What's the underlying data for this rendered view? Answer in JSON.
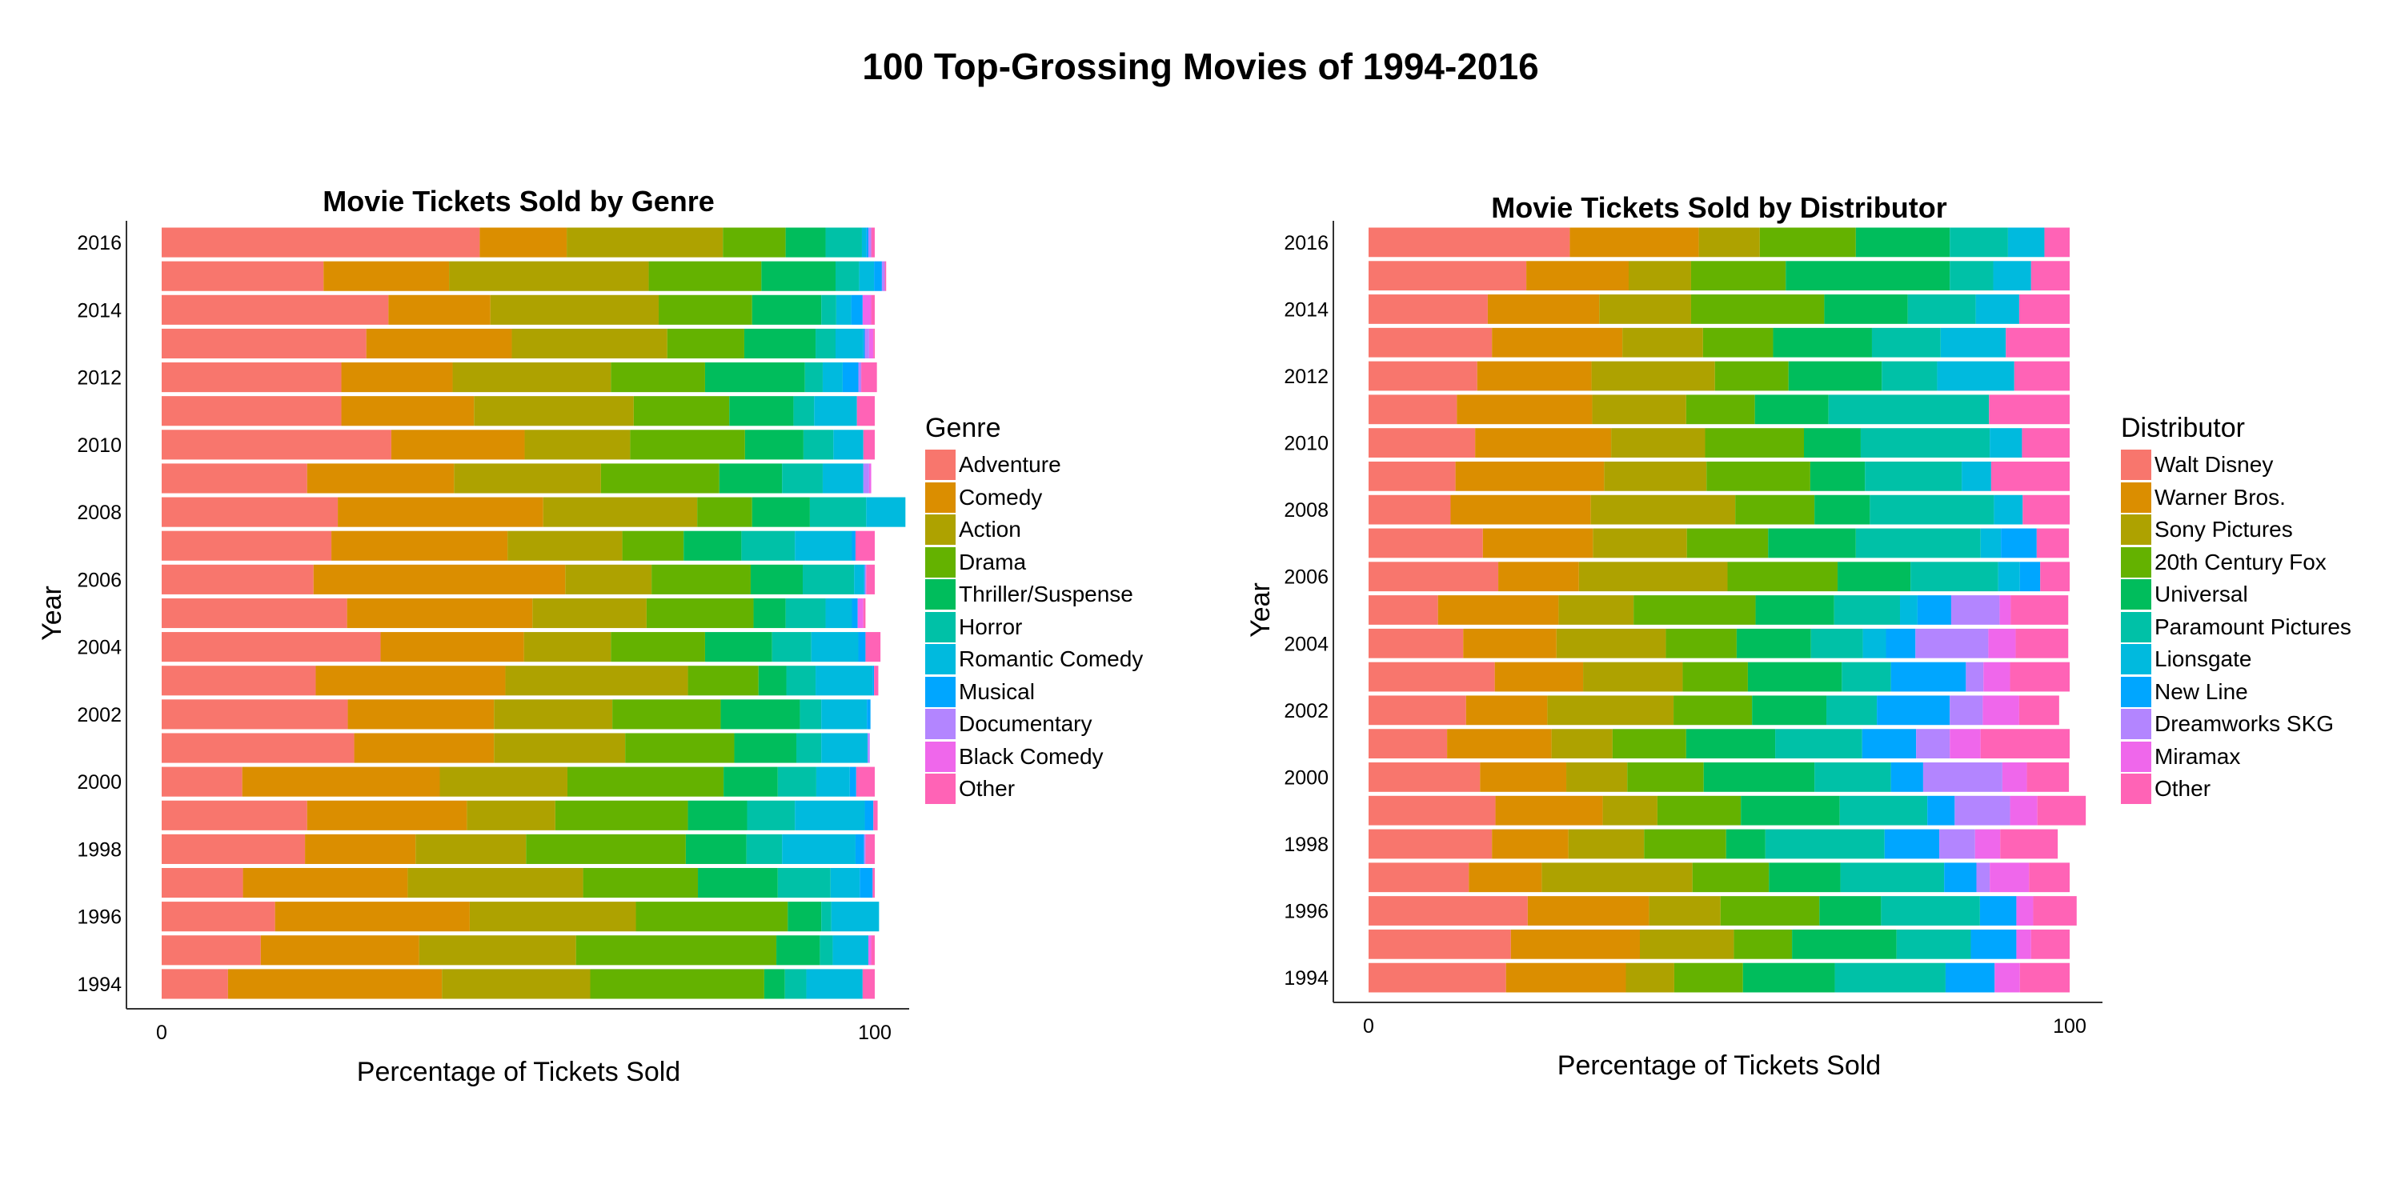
{
  "page_title": "100 Top-Grossing Movies of 1994-2016",
  "chart_data": [
    {
      "type": "bar",
      "orientation": "horizontal",
      "stacked": "percent",
      "title": "Movie Tickets Sold by Genre",
      "xlabel": "Percentage of Tickets Sold",
      "ylabel": "Year",
      "xlim": [
        0,
        100
      ],
      "x_ticks": [
        "0",
        "100"
      ],
      "y_ticks": [
        "1994",
        "1996",
        "1998",
        "2000",
        "2002",
        "2004",
        "2006",
        "2008",
        "2010",
        "2012",
        "2014",
        "2016"
      ],
      "grid": false,
      "legend_position": "right",
      "legend_title": "Genre",
      "categories": [
        "1994",
        "1995",
        "1996",
        "1997",
        "1998",
        "1999",
        "2000",
        "2001",
        "2002",
        "2003",
        "2004",
        "2005",
        "2006",
        "2007",
        "2008",
        "2009",
        "2010",
        "2011",
        "2012",
        "2013",
        "2014",
        "2015",
        "2016"
      ],
      "series": [
        {
          "name": "Adventure",
          "color": "#F8766D",
          "values": [
            9.3,
            13.9,
            15.9,
            11.4,
            20.1,
            20.4,
            11.3,
            27.0,
            26.1,
            21.6,
            30.7,
            26.0,
            21.3,
            23.8,
            24.7,
            20.4,
            32.2,
            25.2,
            25.2,
            28.7,
            31.8,
            22.7,
            44.6
          ]
        },
        {
          "name": "Comedy",
          "color": "#DB8E00",
          "values": [
            30.0,
            22.2,
            27.3,
            23.1,
            15.5,
            22.4,
            27.7,
            19.6,
            20.5,
            26.6,
            20.1,
            26.0,
            35.3,
            24.7,
            28.8,
            20.6,
            18.7,
            18.6,
            15.6,
            20.4,
            14.3,
            17.6,
            12.2
          ]
        },
        {
          "name": "Action",
          "color": "#AEA200",
          "values": [
            20.8,
            22.0,
            23.3,
            24.6,
            15.5,
            12.4,
            17.9,
            18.4,
            16.6,
            25.6,
            12.2,
            16.0,
            12.1,
            16.1,
            21.6,
            20.6,
            14.8,
            22.4,
            22.2,
            21.8,
            23.6,
            28.0,
            21.9
          ]
        },
        {
          "name": "Drama",
          "color": "#64B200",
          "values": [
            24.4,
            28.1,
            21.3,
            16.1,
            22.4,
            18.6,
            21.9,
            15.3,
            15.2,
            9.9,
            13.2,
            15.0,
            13.9,
            8.6,
            7.7,
            16.6,
            16.1,
            13.4,
            13.2,
            10.8,
            13.1,
            15.8,
            8.8
          ]
        },
        {
          "name": "Thriller/Suspense",
          "color": "#00BD5C",
          "values": [
            2.9,
            6.1,
            4.7,
            11.2,
            8.5,
            8.3,
            7.6,
            8.7,
            11.1,
            3.9,
            9.4,
            4.5,
            7.3,
            8.1,
            8.1,
            8.8,
            8.2,
            9.0,
            14.0,
            10.0,
            9.7,
            10.4,
            5.6
          ]
        },
        {
          "name": "Horror",
          "color": "#00C1A7",
          "values": [
            3.0,
            1.8,
            1.4,
            7.4,
            5.0,
            6.7,
            5.4,
            3.5,
            3.0,
            4.1,
            5.5,
            5.6,
            7.2,
            7.5,
            7.9,
            5.7,
            4.2,
            2.9,
            2.5,
            2.8,
            2.1,
            3.3,
            5.1
          ]
        },
        {
          "name": "Romantic Comedy",
          "color": "#00BADE",
          "values": [
            7.9,
            5.0,
            6.7,
            4.1,
            10.3,
            9.8,
            4.7,
            6.5,
            6.4,
            8.0,
            6.6,
            3.7,
            1.4,
            8.0,
            5.5,
            5.7,
            4.2,
            6.0,
            2.8,
            3.9,
            2.1,
            2.1,
            0.6
          ]
        },
        {
          "name": "Musical",
          "color": "#00A6FF",
          "values": [
            0,
            0,
            0,
            1.8,
            1.2,
            1.2,
            0.9,
            0,
            0.5,
            0.2,
            1.0,
            0.8,
            0.1,
            0.5,
            0,
            0,
            0,
            0,
            2.2,
            0.2,
            1.6,
            1.1,
            0.3
          ]
        },
        {
          "name": "Documentary",
          "color": "#B385FF",
          "values": [
            0,
            0,
            0,
            0,
            0.2,
            0,
            0,
            0.3,
            0,
            0,
            0,
            0,
            0.2,
            0,
            0,
            0.8,
            0,
            0,
            0.4,
            0.6,
            0,
            0.4,
            0.4
          ]
        },
        {
          "name": "Black Comedy",
          "color": "#EF67EB",
          "values": [
            0,
            0.4,
            0,
            0,
            0,
            0,
            0,
            0,
            0,
            0,
            0,
            0.8,
            0,
            0,
            0,
            0.3,
            0,
            0,
            0,
            0.6,
            1.2,
            0,
            0
          ]
        },
        {
          "name": "Other",
          "color": "#FF63B6",
          "values": [
            1.7,
            0.5,
            0,
            0.3,
            1.3,
            0.6,
            2.6,
            0,
            0,
            0.6,
            2.1,
            0.3,
            1.2,
            2.7,
            0,
            0,
            1.6,
            2.5,
            2.2,
            0.2,
            0.5,
            0.2,
            0.5
          ]
        }
      ]
    },
    {
      "type": "bar",
      "orientation": "horizontal",
      "stacked": "percent",
      "title": "Movie Tickets Sold by Distributor",
      "xlabel": "Percentage of Tickets Sold",
      "ylabel": "Year",
      "xlim": [
        0,
        100
      ],
      "x_ticks": [
        "0",
        "100"
      ],
      "y_ticks": [
        "1994",
        "1996",
        "1998",
        "2000",
        "2002",
        "2004",
        "2006",
        "2008",
        "2010",
        "2012",
        "2014",
        "2016"
      ],
      "grid": false,
      "legend_position": "right",
      "legend_title": "Distributor",
      "categories": [
        "1994",
        "1995",
        "1996",
        "1997",
        "1998",
        "1999",
        "2000",
        "2001",
        "2002",
        "2003",
        "2004",
        "2005",
        "2006",
        "2007",
        "2008",
        "2009",
        "2010",
        "2011",
        "2012",
        "2013",
        "2014",
        "2015",
        "2016"
      ],
      "series": [
        {
          "name": "Walt Disney",
          "color": "#F8766D",
          "values": [
            19.6,
            20.3,
            22.7,
            14.3,
            17.6,
            18.1,
            15.9,
            11.2,
            13.9,
            18.0,
            13.5,
            9.9,
            18.5,
            16.3,
            11.7,
            12.4,
            15.2,
            12.6,
            15.5,
            17.6,
            17.0,
            22.5,
            28.7
          ]
        },
        {
          "name": "Warner Bros.",
          "color": "#DB8E00",
          "values": [
            17.1,
            18.4,
            17.3,
            10.4,
            10.9,
            15.3,
            12.3,
            14.9,
            11.6,
            12.6,
            13.3,
            17.2,
            11.5,
            15.7,
            20.0,
            21.2,
            19.4,
            19.3,
            16.3,
            18.6,
            15.9,
            14.6,
            18.4
          ]
        },
        {
          "name": "Sony Pictures",
          "color": "#AEA200",
          "values": [
            6.9,
            13.4,
            10.2,
            21.5,
            10.8,
            7.8,
            8.7,
            8.7,
            18.0,
            14.2,
            15.6,
            10.7,
            21.2,
            13.4,
            20.6,
            14.6,
            13.4,
            13.4,
            17.6,
            11.5,
            13.1,
            8.9,
            8.7
          ]
        },
        {
          "name": "20th Century Fox",
          "color": "#64B200",
          "values": [
            9.8,
            8.3,
            14.1,
            10.9,
            11.7,
            11.9,
            10.9,
            10.5,
            11.2,
            9.3,
            10.1,
            17.4,
            15.7,
            11.6,
            11.3,
            14.8,
            14.1,
            9.8,
            10.5,
            10.0,
            19.0,
            13.5,
            13.7
          ]
        },
        {
          "name": "Universal",
          "color": "#00BD5C",
          "values": [
            13.1,
            14.9,
            8.8,
            10.2,
            5.6,
            14.1,
            15.8,
            12.7,
            10.6,
            13.4,
            10.6,
            11.2,
            10.4,
            12.5,
            7.9,
            7.8,
            8.1,
            10.5,
            13.3,
            14.1,
            11.9,
            23.4,
            13.4
          ]
        },
        {
          "name": "Paramount Pictures",
          "color": "#00C1A7",
          "values": [
            15.8,
            10.6,
            14.1,
            14.8,
            17.0,
            12.5,
            10.9,
            12.4,
            7.2,
            7.0,
            7.4,
            9.4,
            12.5,
            17.8,
            17.7,
            13.8,
            18.4,
            22.9,
            7.9,
            9.8,
            9.7,
            6.2,
            8.3
          ]
        },
        {
          "name": "Lionsgate",
          "color": "#00BADE",
          "values": [
            0,
            0,
            0,
            0,
            0,
            0,
            0,
            0,
            0,
            0,
            3.3,
            2.5,
            3.1,
            2.9,
            4.1,
            4.2,
            4.6,
            0,
            11.0,
            9.3,
            6.2,
            5.4,
            5.2
          ]
        },
        {
          "name": "New Line",
          "color": "#00A6FF",
          "values": [
            7.0,
            6.5,
            5.2,
            4.6,
            7.8,
            3.9,
            4.6,
            7.7,
            10.4,
            10.7,
            4.2,
            4.8,
            2.9,
            5.1,
            0,
            0,
            0,
            0,
            0,
            0,
            0,
            0,
            0
          ]
        },
        {
          "name": "Dreamworks SKG",
          "color": "#B385FF",
          "values": [
            0,
            0,
            0,
            1.9,
            5.1,
            7.9,
            11.3,
            4.8,
            4.7,
            2.5,
            10.4,
            6.9,
            0,
            0,
            0,
            0,
            0,
            0,
            0,
            0,
            0,
            0,
            0
          ]
        },
        {
          "name": "Miramax",
          "color": "#EF67EB",
          "values": [
            3.6,
            2.1,
            2.4,
            5.6,
            3.6,
            3.9,
            3.5,
            4.4,
            5.2,
            3.8,
            3.9,
            1.6,
            0,
            0,
            0,
            0,
            0,
            0,
            0,
            0,
            0,
            0,
            0
          ]
        },
        {
          "name": "Other",
          "color": "#FF63B6",
          "values": [
            7.1,
            5.5,
            6.2,
            5.8,
            8.2,
            6.9,
            6.0,
            12.7,
            5.7,
            8.5,
            7.5,
            8.2,
            4.2,
            4.6,
            6.7,
            11.2,
            6.8,
            11.5,
            7.9,
            9.1,
            7.2,
            5.5,
            3.6
          ]
        }
      ]
    }
  ]
}
